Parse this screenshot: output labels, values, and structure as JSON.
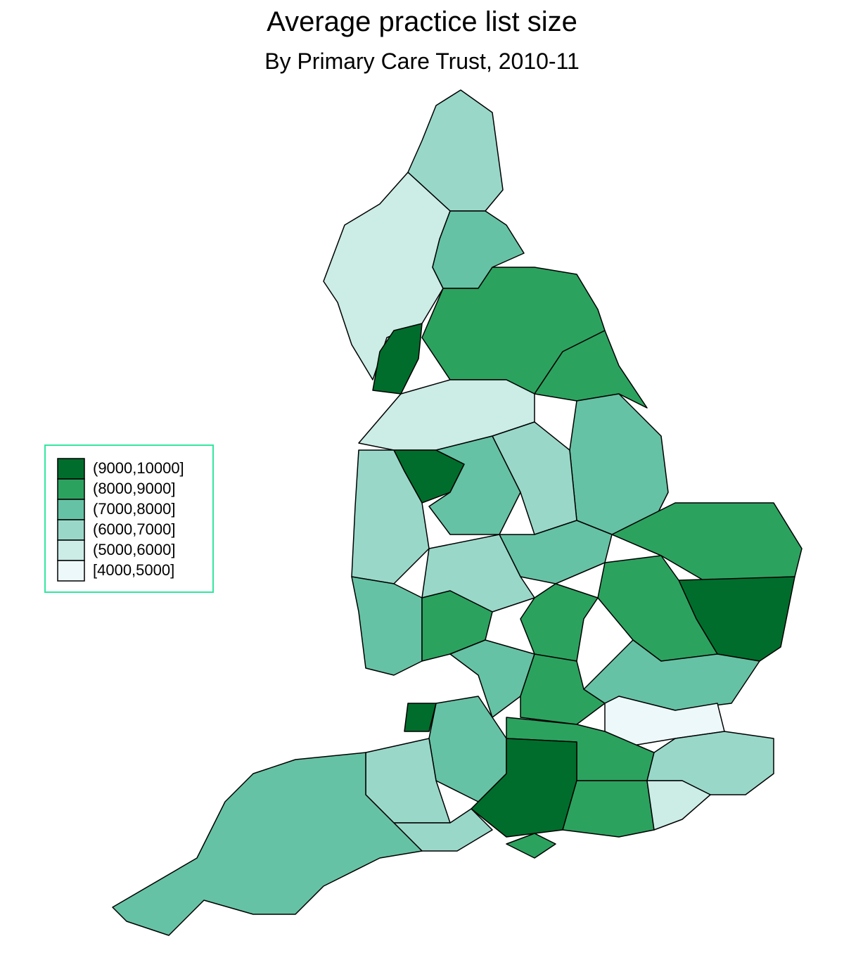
{
  "title": "Average practice list size",
  "subtitle": "By Primary Care Trust, 2010-11",
  "legend": {
    "items": [
      {
        "label": "(9000,10000]",
        "color": "#006d2c"
      },
      {
        "label": "(8000,9000]",
        "color": "#2ca25f"
      },
      {
        "label": "(7000,8000]",
        "color": "#66c2a4"
      },
      {
        "label": "(6000,7000]",
        "color": "#99d8c9"
      },
      {
        "label": "(5000,6000]",
        "color": "#ccece6"
      },
      {
        "label": "[4000,5000]",
        "color": "#edf8fb"
      }
    ]
  }
}
